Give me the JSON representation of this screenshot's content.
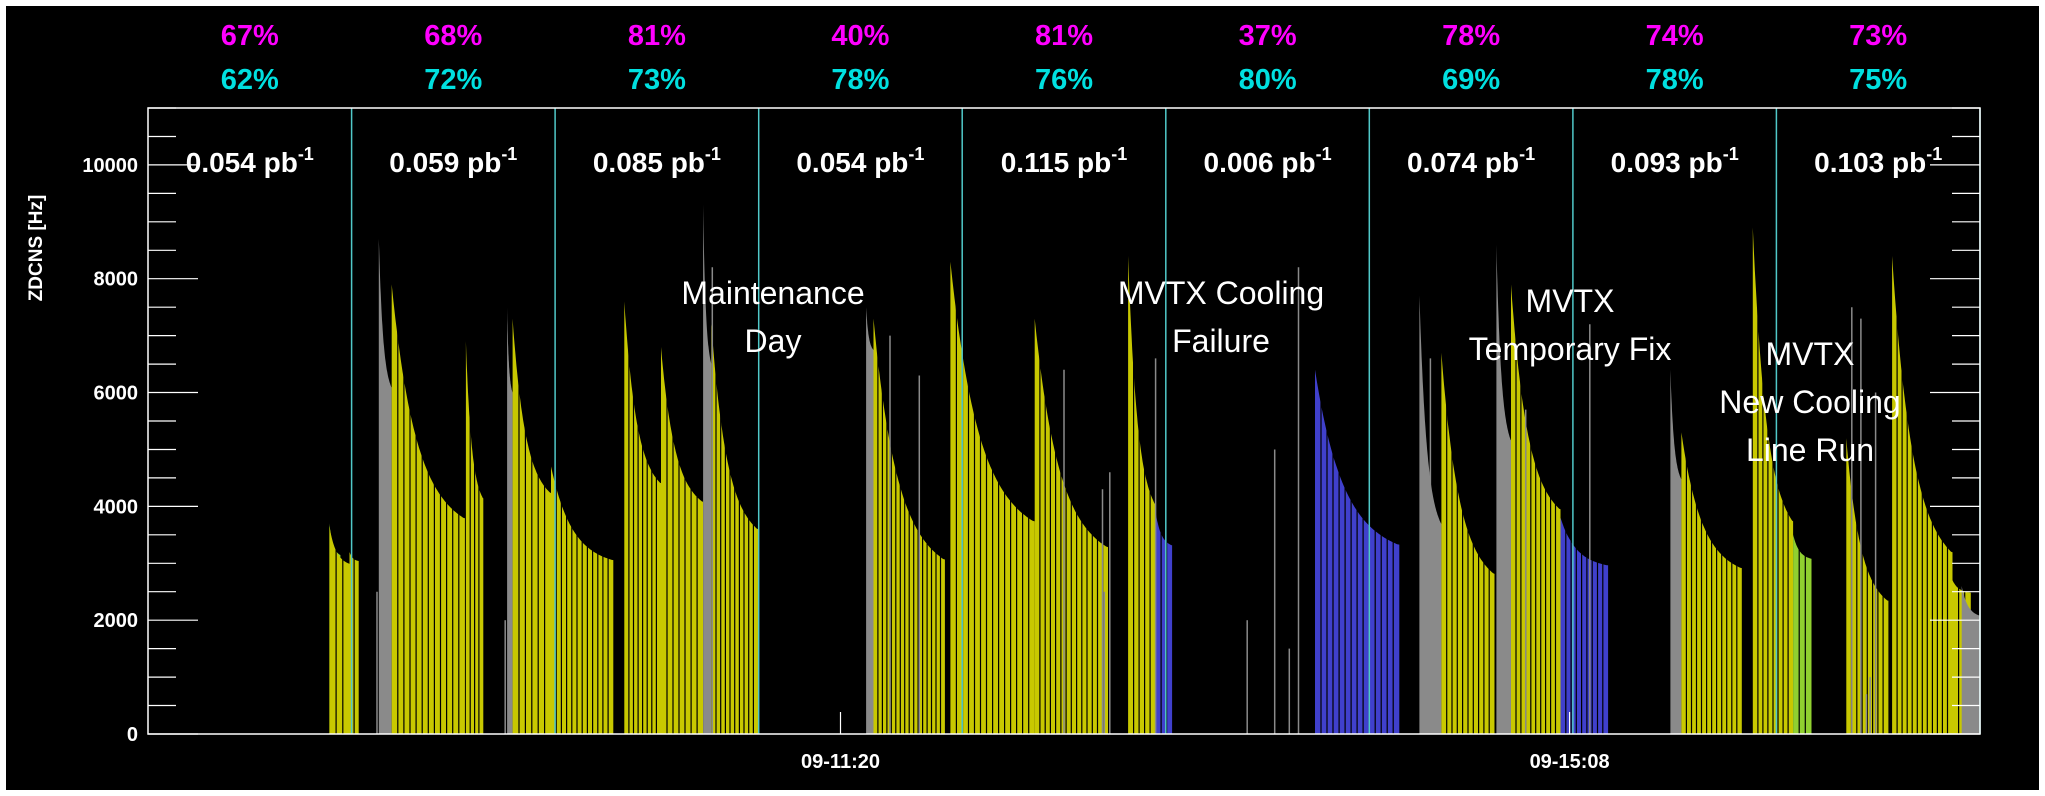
{
  "chart_data": {
    "type": "bar",
    "title": "",
    "xlabel": "",
    "ylabel": "ZDCNS [Hz]",
    "ylim": [
      0,
      11000
    ],
    "yticks": [
      0,
      2000,
      4000,
      6000,
      8000,
      10000
    ],
    "x_ticks": [
      "09-11:20",
      "09-15:08"
    ],
    "grid": false,
    "legend": "none",
    "colors": {
      "background": "#000000",
      "frame": "#ffffff",
      "yellow_bars": "#c8c800",
      "gray_bars": "#8a8a8a",
      "blue_bars": "#4040cc",
      "green_bars": "#90d030",
      "separator": "#50c8c8",
      "pct_top": "#ff00ff",
      "pct_bottom": "#00e0e0",
      "text": "#ffffff"
    },
    "segments": [
      {
        "lumi": "0.054",
        "pct_top": "67%",
        "pct_bottom": "62%"
      },
      {
        "lumi": "0.059",
        "pct_top": "68%",
        "pct_bottom": "72%"
      },
      {
        "lumi": "0.085",
        "pct_top": "81%",
        "pct_bottom": "73%"
      },
      {
        "lumi": "0.054",
        "pct_top": "40%",
        "pct_bottom": "78%"
      },
      {
        "lumi": "0.115",
        "pct_top": "81%",
        "pct_bottom": "76%"
      },
      {
        "lumi": "0.006",
        "pct_top": "37%",
        "pct_bottom": "80%"
      },
      {
        "lumi": "0.074",
        "pct_top": "78%",
        "pct_bottom": "69%"
      },
      {
        "lumi": "0.093",
        "pct_top": "74%",
        "pct_bottom": "78%"
      },
      {
        "lumi": "0.103",
        "pct_top": "73%",
        "pct_bottom": "75%"
      }
    ],
    "lumi_unit": "pb",
    "lumi_exponent": "-1",
    "annotations": [
      {
        "lines": [
          "Maintenance",
          "Day"
        ]
      },
      {
        "lines": [
          "MVTX Cooling",
          "Failure"
        ]
      },
      {
        "lines": [
          "MVTX",
          "Temporary Fix"
        ]
      },
      {
        "lines": [
          "MVTX",
          "New Cooling",
          "Line Run"
        ]
      }
    ],
    "fills": [
      {
        "color": "green",
        "start": 0.099,
        "end": 0.105,
        "peak": 3700,
        "decay": 0.15,
        "lines": 2
      },
      {
        "color": "yellow",
        "start": 0.099,
        "end": 0.11,
        "peak": 3650,
        "decay": 0.18,
        "lines": 3
      },
      {
        "color": "yellow",
        "start": 0.11,
        "end": 0.115,
        "peak": 3200,
        "decay": 0.05,
        "lines": 2
      },
      {
        "color": "gray",
        "start": 0.126,
        "end": 0.133,
        "peak": 8700,
        "decay": 0.3,
        "lines": 0
      },
      {
        "color": "yellow",
        "start": 0.133,
        "end": 0.173,
        "peak": 7900,
        "decay": 0.52,
        "lines": 12
      },
      {
        "color": "yellow",
        "start": 0.1735,
        "end": 0.183,
        "peak": 6900,
        "decay": 0.4,
        "lines": 4
      },
      {
        "color": "gray",
        "start": 0.196,
        "end": 0.199,
        "peak": 7500,
        "decay": 0.2,
        "lines": 0
      },
      {
        "color": "yellow",
        "start": 0.199,
        "end": 0.22,
        "peak": 7300,
        "decay": 0.42,
        "lines": 6
      },
      {
        "color": "yellow",
        "start": 0.22,
        "end": 0.254,
        "peak": 4700,
        "decay": 0.35,
        "lines": 12
      },
      {
        "color": "yellow",
        "start": 0.26,
        "end": 0.28,
        "peak": 7600,
        "decay": 0.42,
        "lines": 8
      },
      {
        "color": "yellow",
        "start": 0.28,
        "end": 0.303,
        "peak": 6800,
        "decay": 0.4,
        "lines": 7
      },
      {
        "color": "gray",
        "start": 0.303,
        "end": 0.3075,
        "peak": 9300,
        "decay": 0.3,
        "lines": 0
      },
      {
        "color": "yellow",
        "start": 0.3075,
        "end": 0.333,
        "peak": 7200,
        "decay": 0.5,
        "lines": 10
      },
      {
        "color": "gray",
        "start": 0.392,
        "end": 0.396,
        "peak": 7500,
        "decay": 0.1,
        "lines": 0
      },
      {
        "color": "yellow",
        "start": 0.396,
        "end": 0.435,
        "peak": 7300,
        "decay": 0.58,
        "lines": 16
      },
      {
        "color": "yellow",
        "start": 0.438,
        "end": 0.484,
        "peak": 8300,
        "decay": 0.55,
        "lines": 14
      },
      {
        "color": "yellow",
        "start": 0.484,
        "end": 0.524,
        "peak": 7300,
        "decay": 0.55,
        "lines": 14
      },
      {
        "color": "yellow",
        "start": 0.535,
        "end": 0.55,
        "peak": 8400,
        "decay": 0.52,
        "lines": 5
      },
      {
        "color": "blue",
        "start": 0.55,
        "end": 0.559,
        "peak": 3900,
        "decay": 0.15,
        "lines": 3
      },
      {
        "color": "blue",
        "start": 0.637,
        "end": 0.683,
        "peak": 6400,
        "decay": 0.48,
        "lines": 14
      },
      {
        "color": "gray",
        "start": 0.694,
        "end": 0.706,
        "peak": 7700,
        "decay": 0.52,
        "lines": 0
      },
      {
        "color": "yellow",
        "start": 0.706,
        "end": 0.735,
        "peak": 6700,
        "decay": 0.58,
        "lines": 10
      },
      {
        "color": "gray",
        "start": 0.736,
        "end": 0.744,
        "peak": 8600,
        "decay": 0.4,
        "lines": 0
      },
      {
        "color": "yellow",
        "start": 0.744,
        "end": 0.771,
        "peak": 7900,
        "decay": 0.5,
        "lines": 10
      },
      {
        "color": "blue",
        "start": 0.771,
        "end": 0.797,
        "peak": 3800,
        "decay": 0.22,
        "lines": 9
      },
      {
        "color": "gray",
        "start": 0.831,
        "end": 0.837,
        "peak": 6400,
        "decay": 0.3,
        "lines": 0
      },
      {
        "color": "yellow",
        "start": 0.837,
        "end": 0.87,
        "peak": 5300,
        "decay": 0.45,
        "lines": 12
      },
      {
        "color": "yellow",
        "start": 0.876,
        "end": 0.898,
        "peak": 8900,
        "decay": 0.58,
        "lines": 8
      },
      {
        "color": "green",
        "start": 0.898,
        "end": 0.908,
        "peak": 3500,
        "decay": 0.12,
        "lines": 3
      },
      {
        "color": "yellow",
        "start": 0.927,
        "end": 0.95,
        "peak": 5200,
        "decay": 0.55,
        "lines": 8
      },
      {
        "color": "yellow",
        "start": 0.952,
        "end": 0.985,
        "peak": 8400,
        "decay": 0.62,
        "lines": 12
      },
      {
        "color": "yellow",
        "start": 0.985,
        "end": 0.995,
        "peak": 2700,
        "decay": 0.08,
        "lines": 3
      },
      {
        "color": "gray",
        "start": 0.99,
        "end": 1.0,
        "peak": 2600,
        "decay": 0.2,
        "lines": 0
      }
    ],
    "spikes": [
      {
        "color": "gray",
        "x": 0.125,
        "v": 2500
      },
      {
        "color": "gray",
        "x": 0.195,
        "v": 2000
      },
      {
        "color": "gray",
        "x": 0.305,
        "v": 4000
      },
      {
        "color": "gray",
        "x": 0.308,
        "v": 8200
      },
      {
        "color": "gray",
        "x": 0.405,
        "v": 7000
      },
      {
        "color": "gray",
        "x": 0.421,
        "v": 6300
      },
      {
        "color": "gray",
        "x": 0.5,
        "v": 6400
      },
      {
        "color": "gray",
        "x": 0.521,
        "v": 4300
      },
      {
        "color": "gray",
        "x": 0.525,
        "v": 4600
      },
      {
        "color": "gray",
        "x": 0.522,
        "v": 2500
      },
      {
        "color": "gray",
        "x": 0.55,
        "v": 6600
      },
      {
        "color": "gray",
        "x": 0.6,
        "v": 2000
      },
      {
        "color": "gray",
        "x": 0.615,
        "v": 5000
      },
      {
        "color": "gray",
        "x": 0.623,
        "v": 1500
      },
      {
        "color": "gray",
        "x": 0.628,
        "v": 8200
      },
      {
        "color": "gray",
        "x": 0.7,
        "v": 6600
      },
      {
        "color": "gray",
        "x": 0.752,
        "v": 5700
      },
      {
        "color": "gray",
        "x": 0.787,
        "v": 7200
      },
      {
        "color": "gray",
        "x": 0.93,
        "v": 7500
      },
      {
        "color": "gray",
        "x": 0.935,
        "v": 7300
      },
      {
        "color": "gray",
        "x": 0.94,
        "v": 1000
      },
      {
        "color": "gray",
        "x": 0.938,
        "v": 700
      },
      {
        "color": "gray",
        "x": 0.943,
        "v": 6000
      }
    ]
  }
}
